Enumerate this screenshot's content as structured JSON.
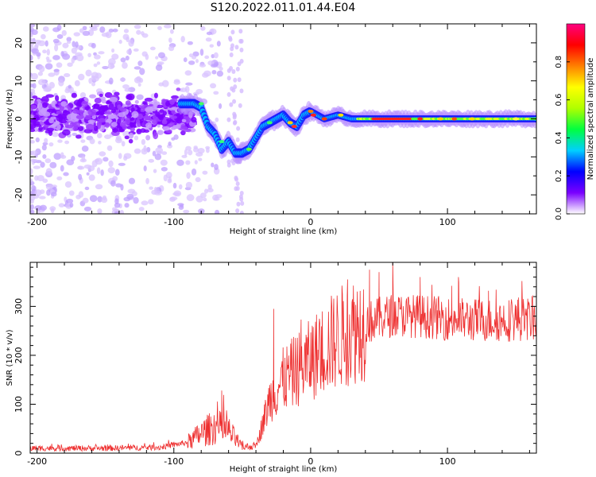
{
  "title": "S120.2022.011.01.44.E04",
  "chart_data": [
    {
      "type": "heatmap",
      "xlabel": "Height of straight line (km)",
      "ylabel": "Frequency (Hz)",
      "xlim": [
        -205,
        165
      ],
      "ylim": [
        -25,
        25
      ],
      "x_ticks": [
        -200,
        -100,
        0,
        100
      ],
      "y_ticks": [
        -20,
        -10,
        0,
        10,
        20
      ],
      "colorbar": {
        "label": "Normalized spectral amplitude",
        "range": [
          0,
          1
        ],
        "ticks": [
          "0.0",
          "0.2",
          "0.4",
          "0.6",
          "0.8"
        ],
        "colors": [
          "#ffffff",
          "#7a00ff",
          "#0000ff",
          "#00d0ff",
          "#00ff40",
          "#b0ff00",
          "#ffff00",
          "#ff8000",
          "#ff0000",
          "#ff0080"
        ]
      },
      "ridge": {
        "description": "dominant spectral peak (frequency in Hz vs height in km)",
        "points": [
          [
            -95,
            4
          ],
          [
            -85,
            4
          ],
          [
            -80,
            3
          ],
          [
            -75,
            -2
          ],
          [
            -70,
            -4
          ],
          [
            -65,
            -8
          ],
          [
            -60,
            -6
          ],
          [
            -55,
            -9
          ],
          [
            -50,
            -9
          ],
          [
            -45,
            -8
          ],
          [
            -40,
            -5
          ],
          [
            -35,
            -2
          ],
          [
            -30,
            -1
          ],
          [
            -25,
            0
          ],
          [
            -20,
            1
          ],
          [
            -15,
            -1
          ],
          [
            -10,
            -2
          ],
          [
            -5,
            1
          ],
          [
            0,
            2
          ],
          [
            5,
            1
          ],
          [
            10,
            0
          ],
          [
            20,
            1
          ],
          [
            30,
            0
          ],
          [
            40,
            0
          ],
          [
            60,
            0
          ],
          [
            80,
            0
          ],
          [
            100,
            0
          ],
          [
            120,
            0
          ],
          [
            140,
            0
          ],
          [
            165,
            0
          ]
        ]
      }
    },
    {
      "type": "line",
      "xlabel": "Height of straight line (km)",
      "ylabel": "SNR (10 * v/v)",
      "xlim": [
        -205,
        165
      ],
      "ylim": [
        0,
        390
      ],
      "x_ticks": [
        -200,
        -100,
        0,
        100
      ],
      "y_ticks": [
        0,
        100,
        200,
        300
      ],
      "color": "#ee3030",
      "series": [
        {
          "envelope": [
            [
              -205,
              10
            ],
            [
              -150,
              10
            ],
            [
              -110,
              12
            ],
            [
              -90,
              22
            ],
            [
              -80,
              40
            ],
            [
              -70,
              55
            ],
            [
              -60,
              45
            ],
            [
              -50,
              12
            ],
            [
              -40,
              15
            ],
            [
              -35,
              60
            ],
            [
              -30,
              110
            ],
            [
              -20,
              150
            ],
            [
              -10,
              170
            ],
            [
              0,
              190
            ],
            [
              10,
              215
            ],
            [
              20,
              235
            ],
            [
              30,
              250
            ],
            [
              40,
              265
            ],
            [
              50,
              275
            ],
            [
              60,
              282
            ],
            [
              80,
              280
            ],
            [
              100,
              275
            ],
            [
              120,
              272
            ],
            [
              140,
              272
            ],
            [
              165,
              275
            ]
          ],
          "peaks": [
            [
              -65,
              128
            ],
            [
              -27,
              295
            ],
            [
              -7,
              273
            ],
            [
              27,
              355
            ],
            [
              43,
              375
            ],
            [
              50,
              370
            ],
            [
              60,
              390
            ],
            [
              80,
              360
            ],
            [
              103,
              342
            ],
            [
              108,
              360
            ],
            [
              130,
              332
            ],
            [
              152,
              318
            ]
          ]
        }
      ]
    }
  ]
}
